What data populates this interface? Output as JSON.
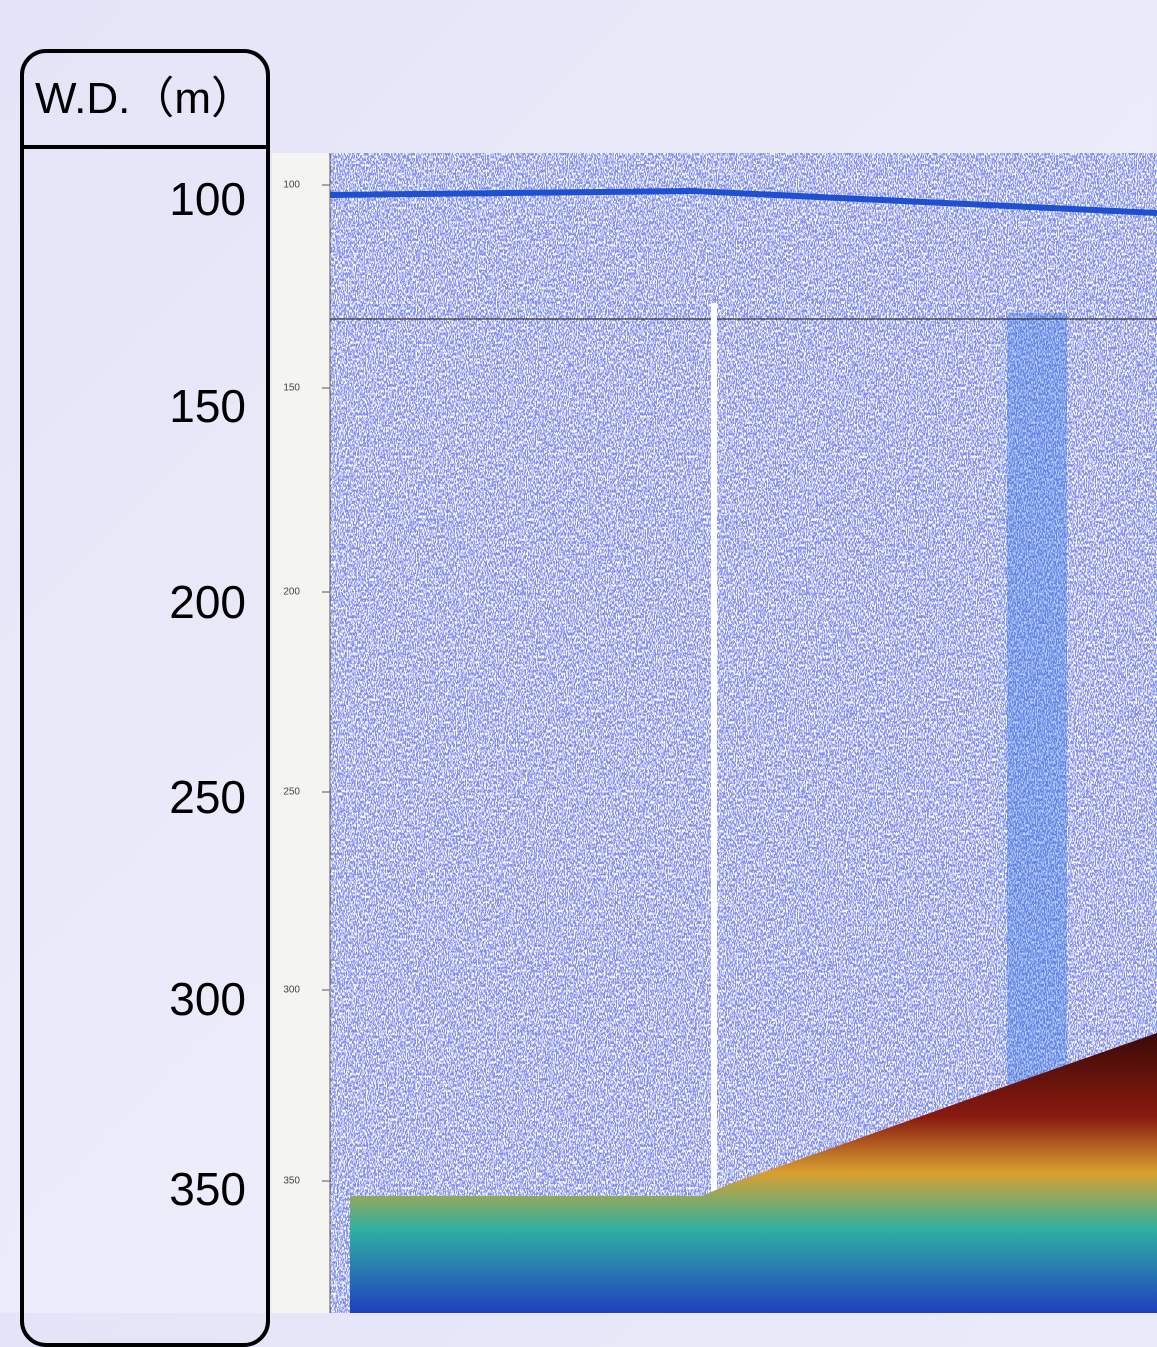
{
  "scale_panel": {
    "header": "W.D.（m）",
    "labels": [
      100,
      150,
      200,
      250,
      300,
      350
    ]
  },
  "echogram": {
    "tick_labels": [
      100,
      150,
      200,
      250,
      300,
      350
    ]
  }
}
